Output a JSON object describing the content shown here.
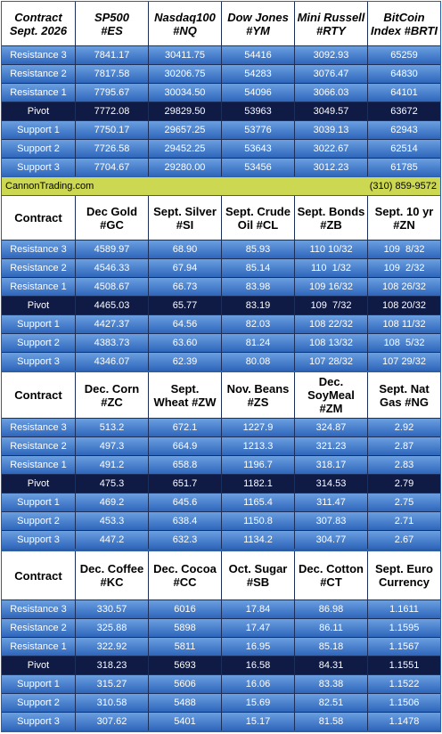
{
  "sections": [
    {
      "header": [
        "Contract\nSept. 2026",
        "SP500\n#ES",
        "Nasdaq100\n#NQ",
        "Dow Jones\n#YM",
        "Mini Russell\n#RTY",
        "BitCoin\nIndex #BRTI"
      ],
      "rows": [
        [
          "Resistance 3",
          "7841.17",
          "30411.75",
          "54416",
          "3092.93",
          "65259"
        ],
        [
          "Resistance 2",
          "7817.58",
          "30206.75",
          "54283",
          "3076.47",
          "64830"
        ],
        [
          "Resistance 1",
          "7795.67",
          "30034.50",
          "54096",
          "3066.03",
          "64101"
        ],
        [
          "Pivot",
          "7772.08",
          "29829.50",
          "53963",
          "3049.57",
          "63672"
        ],
        [
          "Support 1",
          "7750.17",
          "29657.25",
          "53776",
          "3039.13",
          "62943"
        ],
        [
          "Support 2",
          "7726.58",
          "29452.25",
          "53643",
          "3022.67",
          "62514"
        ],
        [
          "Support 3",
          "7704.67",
          "29280.00",
          "53456",
          "3012.23",
          "61785"
        ]
      ]
    },
    {
      "header": [
        "Contract",
        "Dec Gold\n#GC",
        "Sept. Silver\n#SI",
        "Sept. Crude\nOil #CL",
        "Sept. Bonds\n#ZB",
        "Sept. 10 yr\n#ZN"
      ],
      "rows": [
        [
          "Resistance 3",
          "4589.97",
          "68.90",
          "85.93",
          "110 10/32",
          "109  8/32"
        ],
        [
          "Resistance 2",
          "4546.33",
          "67.94",
          "85.14",
          "110  1/32",
          "109  2/32"
        ],
        [
          "Resistance 1",
          "4508.67",
          "66.73",
          "83.98",
          "109 16/32",
          "108 26/32"
        ],
        [
          "Pivot",
          "4465.03",
          "65.77",
          "83.19",
          "109  7/32",
          "108 20/32"
        ],
        [
          "Support 1",
          "4427.37",
          "64.56",
          "82.03",
          "108 22/32",
          "108 11/32"
        ],
        [
          "Support 2",
          "4383.73",
          "63.60",
          "81.24",
          "108 13/32",
          "108  5/32"
        ],
        [
          "Support 3",
          "4346.07",
          "62.39",
          "80.08",
          "107 28/32",
          "107 29/32"
        ]
      ]
    },
    {
      "header": [
        "Contract",
        "Dec. Corn\n#ZC",
        "Sept.\nWheat #ZW",
        "Nov. Beans\n#ZS",
        "Dec.\nSoyMeal\n#ZM",
        "Sept. Nat\nGas #NG"
      ],
      "rows": [
        [
          "Resistance 3",
          "513.2",
          "672.1",
          "1227.9",
          "324.87",
          "2.92"
        ],
        [
          "Resistance 2",
          "497.3",
          "664.9",
          "1213.3",
          "321.23",
          "2.87"
        ],
        [
          "Resistance 1",
          "491.2",
          "658.8",
          "1196.7",
          "318.17",
          "2.83"
        ],
        [
          "Pivot",
          "475.3",
          "651.7",
          "1182.1",
          "314.53",
          "2.79"
        ],
        [
          "Support 1",
          "469.2",
          "645.6",
          "1165.4",
          "311.47",
          "2.75"
        ],
        [
          "Support 2",
          "453.3",
          "638.4",
          "1150.8",
          "307.83",
          "2.71"
        ],
        [
          "Support 3",
          "447.2",
          "632.3",
          "1134.2",
          "304.77",
          "2.67"
        ]
      ]
    },
    {
      "header": [
        "Contract",
        "Dec. Coffee\n#KC",
        "Dec. Cocoa\n#CC",
        "Oct. Sugar\n#SB",
        "Dec. Cotton\n#CT",
        "Sept. Euro\nCurrency"
      ],
      "rows": [
        [
          "Resistance 3",
          "330.57",
          "6016",
          "17.84",
          "86.98",
          "1.1611"
        ],
        [
          "Resistance 2",
          "325.88",
          "5898",
          "17.47",
          "86.11",
          "1.1595"
        ],
        [
          "Resistance 1",
          "322.92",
          "5811",
          "16.95",
          "85.18",
          "1.1567"
        ],
        [
          "Pivot",
          "318.23",
          "5693",
          "16.58",
          "84.31",
          "1.1551"
        ],
        [
          "Support 1",
          "315.27",
          "5606",
          "16.06",
          "83.38",
          "1.1522"
        ],
        [
          "Support 2",
          "310.58",
          "5488",
          "15.69",
          "82.51",
          "1.1506"
        ],
        [
          "Support 3",
          "307.62",
          "5401",
          "15.17",
          "81.58",
          "1.1478"
        ]
      ]
    }
  ],
  "banner": {
    "site": "CannonTrading.com",
    "phone": "(310) 859-9572"
  }
}
